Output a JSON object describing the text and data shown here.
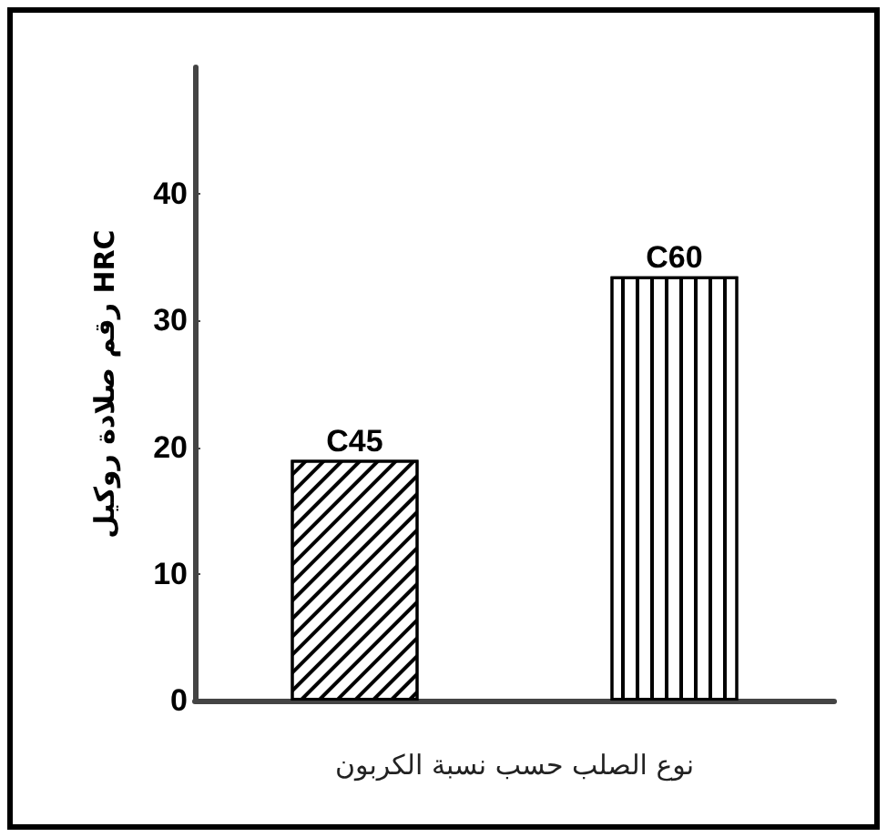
{
  "chart_data": {
    "type": "bar",
    "categories": [
      "C45",
      "C60"
    ],
    "values": [
      19,
      33.5
    ],
    "colors": [
      "#000000",
      "#000000"
    ],
    "xlabel": "نوع الصلب حسب نسبة الكربون",
    "ylabel": "رقم صلادة روكيل HRC",
    "ylim": [
      0,
      50
    ],
    "yticks": [
      0,
      10,
      20,
      30,
      40
    ],
    "tick_labels": "y"
  }
}
